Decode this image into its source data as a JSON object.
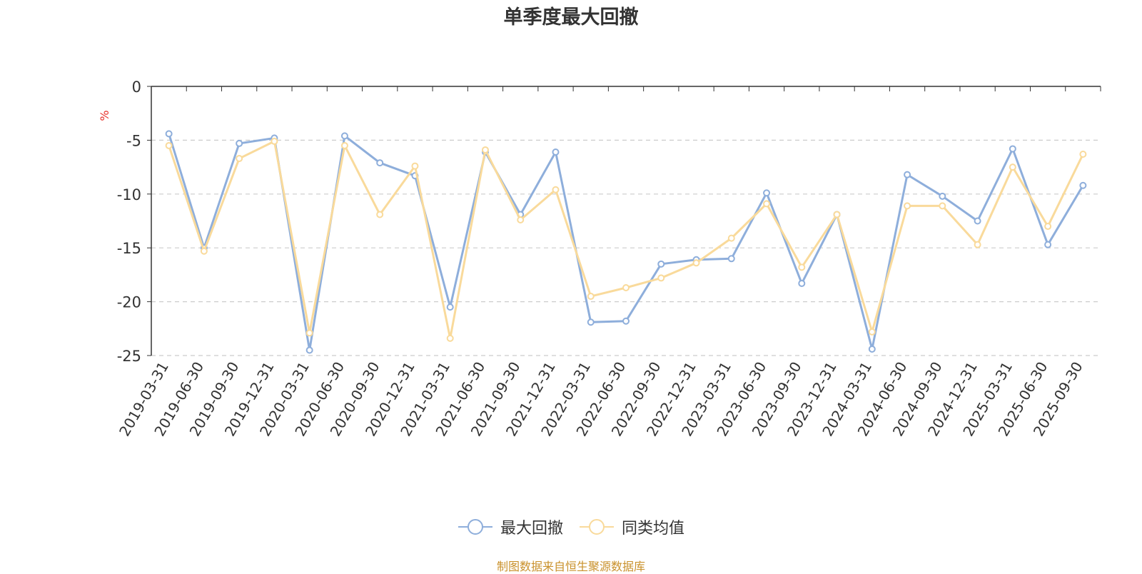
{
  "colors": {
    "series1": "#8eaedb",
    "series2": "#f9da9b",
    "axis": "#333333",
    "grid": "#cccccc",
    "unit": "#e8302a",
    "source": "#c9912b"
  },
  "chart_data": {
    "type": "line",
    "title": "单季度最大回撤",
    "ylabel": "%",
    "ylim": [
      -25,
      0
    ],
    "yticks": [
      0,
      -5,
      -10,
      -15,
      -20,
      -25
    ],
    "grid": "horizontal-dashed",
    "legend_position": "bottom-center",
    "categories": [
      "2019-03-31",
      "2019-06-30",
      "2019-09-30",
      "2019-12-31",
      "2020-03-31",
      "2020-06-30",
      "2020-09-30",
      "2020-12-31",
      "2021-03-31",
      "2021-06-30",
      "2021-09-30",
      "2021-12-31",
      "2022-03-31",
      "2022-06-30",
      "2022-09-30",
      "2022-12-31",
      "2023-03-31",
      "2023-06-30",
      "2023-09-30",
      "2023-12-31",
      "2024-03-31",
      "2024-06-30",
      "2024-09-30",
      "2024-12-31",
      "2025-03-31",
      "2025-06-30",
      "2025-09-30"
    ],
    "series": [
      {
        "name": "最大回撤",
        "color": "#8eaedb",
        "values": [
          -4.4,
          -15.0,
          -5.3,
          -4.8,
          -24.5,
          -4.6,
          -7.1,
          -8.3,
          -20.5,
          -6.1,
          -11.9,
          -6.1,
          -21.9,
          -21.8,
          -16.5,
          -16.1,
          -16.0,
          -9.9,
          -18.3,
          -11.9,
          -24.4,
          -8.2,
          -10.2,
          -12.5,
          -5.8,
          -14.7,
          -9.2
        ]
      },
      {
        "name": "同类均值",
        "color": "#f9da9b",
        "values": [
          -5.5,
          -15.3,
          -6.7,
          -5.1,
          -22.9,
          -5.5,
          -11.9,
          -7.4,
          -23.4,
          -5.9,
          -12.4,
          -9.6,
          -19.5,
          -18.7,
          -17.8,
          -16.4,
          -14.1,
          -10.9,
          -16.8,
          -11.9,
          -22.8,
          -11.1,
          -11.1,
          -14.7,
          -7.5,
          -13.0,
          -6.3
        ]
      }
    ]
  },
  "footer": {
    "source": "制图数据来自恒生聚源数据库"
  }
}
